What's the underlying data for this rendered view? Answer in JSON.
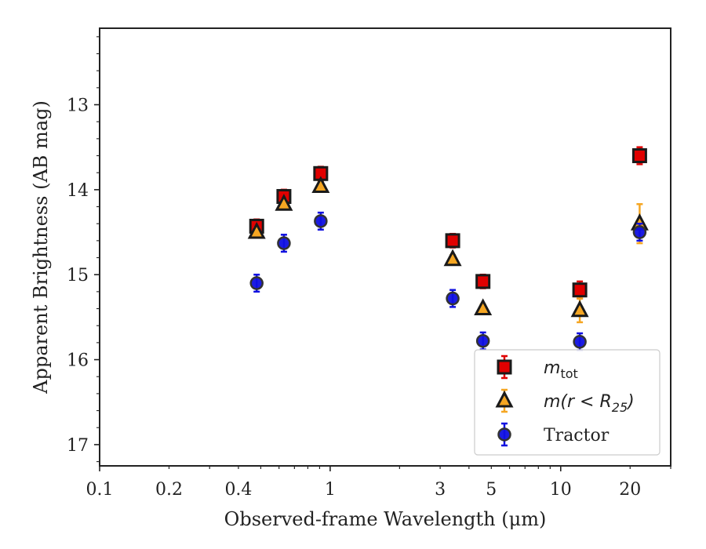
{
  "chart_data": {
    "type": "scatter",
    "xscale": "log",
    "xlim": [
      0.1,
      30
    ],
    "ylim": [
      17.25,
      12.1
    ],
    "y_inverted": true,
    "xlabel": "Observed-frame Wavelength (μm)",
    "ylabel": "Apparent Brightness (AB mag)",
    "x_ticks": [
      {
        "value": 0.1,
        "label": "0.1"
      },
      {
        "value": 0.2,
        "label": "0.2"
      },
      {
        "value": 0.4,
        "label": "0.4"
      },
      {
        "value": 1,
        "label": "1"
      },
      {
        "value": 3,
        "label": "3"
      },
      {
        "value": 5,
        "label": "5"
      },
      {
        "value": 10,
        "label": "10"
      },
      {
        "value": 20,
        "label": "20"
      }
    ],
    "y_ticks": [
      {
        "value": 13,
        "label": "13"
      },
      {
        "value": 14,
        "label": "14"
      },
      {
        "value": 15,
        "label": "15"
      },
      {
        "value": 16,
        "label": "16"
      },
      {
        "value": 17,
        "label": "17"
      }
    ],
    "grid": false,
    "legend_position": "lower-right",
    "series": [
      {
        "name": "m_tot",
        "marker": "square",
        "color": "#e00000",
        "points": [
          {
            "x": 0.48,
            "y": 14.43,
            "err": 0.08
          },
          {
            "x": 0.63,
            "y": 14.08,
            "err": 0.08
          },
          {
            "x": 0.91,
            "y": 13.81,
            "err": 0.08
          },
          {
            "x": 3.4,
            "y": 14.6,
            "err": 0.08
          },
          {
            "x": 4.6,
            "y": 15.08,
            "err": 0.08
          },
          {
            "x": 12.1,
            "y": 15.18,
            "err": 0.1
          },
          {
            "x": 22.0,
            "y": 13.6,
            "err": 0.1
          }
        ]
      },
      {
        "name": "m(r<R25)",
        "marker": "triangle",
        "color": "#f5a623",
        "points": [
          {
            "x": 0.48,
            "y": 14.5,
            "err": 0.05
          },
          {
            "x": 0.63,
            "y": 14.17,
            "err": 0.05
          },
          {
            "x": 0.91,
            "y": 13.96,
            "err": 0.05
          },
          {
            "x": 3.4,
            "y": 14.82,
            "err": 0.05
          },
          {
            "x": 4.6,
            "y": 15.4,
            "err": 0.05
          },
          {
            "x": 12.1,
            "y": 15.42,
            "err": 0.14
          },
          {
            "x": 22.0,
            "y": 14.4,
            "err": 0.23
          }
        ]
      },
      {
        "name": "Tractor",
        "marker": "circle",
        "color": "#1010e0",
        "points": [
          {
            "x": 0.48,
            "y": 15.1,
            "err": 0.1
          },
          {
            "x": 0.63,
            "y": 14.63,
            "err": 0.1
          },
          {
            "x": 0.91,
            "y": 14.37,
            "err": 0.1
          },
          {
            "x": 3.4,
            "y": 15.28,
            "err": 0.1
          },
          {
            "x": 4.6,
            "y": 15.78,
            "err": 0.1
          },
          {
            "x": 12.1,
            "y": 15.79,
            "err": 0.1
          },
          {
            "x": 22.0,
            "y": 14.5,
            "err": 0.1
          }
        ]
      }
    ],
    "legend": [
      {
        "series": 0,
        "label_main": "m",
        "label_sub": "tot",
        "label_rest": ""
      },
      {
        "series": 1,
        "label_main": "m(r < R",
        "label_sub": "25",
        "label_rest": ")"
      },
      {
        "series": 2,
        "label_main": "Tractor",
        "label_sub": "",
        "label_rest": ""
      }
    ]
  }
}
